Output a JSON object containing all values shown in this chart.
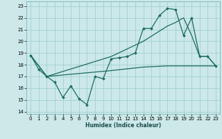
{
  "xlabel": "Humidex (Indice chaleur)",
  "bg_color": "#cce8e8",
  "grid_color": "#99cccc",
  "line_color": "#1a6b5a",
  "xlim": [
    -0.5,
    23.5
  ],
  "ylim": [
    13.8,
    23.4
  ],
  "yticks": [
    14,
    15,
    16,
    17,
    18,
    19,
    20,
    21,
    22,
    23
  ],
  "xticks": [
    0,
    1,
    2,
    3,
    4,
    5,
    6,
    7,
    8,
    9,
    10,
    11,
    12,
    13,
    14,
    15,
    16,
    17,
    18,
    19,
    20,
    21,
    22,
    23
  ],
  "line1_x": [
    0,
    1,
    2,
    3,
    4,
    5,
    6,
    7,
    8,
    9,
    10,
    11,
    12,
    13,
    14,
    15,
    16,
    17,
    18,
    19,
    20,
    21,
    22,
    23
  ],
  "line1_y": [
    18.8,
    17.6,
    17.0,
    16.5,
    15.2,
    16.2,
    15.1,
    14.6,
    17.0,
    16.8,
    18.5,
    18.6,
    18.7,
    19.0,
    21.1,
    21.1,
    22.2,
    22.8,
    22.7,
    20.5,
    22.0,
    18.7,
    18.7,
    17.9
  ],
  "line2_x": [
    0,
    2,
    10,
    14,
    17,
    18,
    19,
    20,
    21,
    22,
    23
  ],
  "line2_y": [
    18.8,
    17.0,
    18.7,
    20.0,
    21.3,
    21.6,
    22.0,
    20.5,
    18.7,
    18.7,
    17.9
  ],
  "line3_x": [
    0,
    2,
    10,
    14,
    17,
    18,
    19,
    20,
    21,
    22,
    23
  ],
  "line3_y": [
    18.8,
    17.0,
    17.5,
    17.8,
    17.9,
    17.9,
    17.9,
    17.9,
    17.9,
    17.9,
    17.9
  ]
}
